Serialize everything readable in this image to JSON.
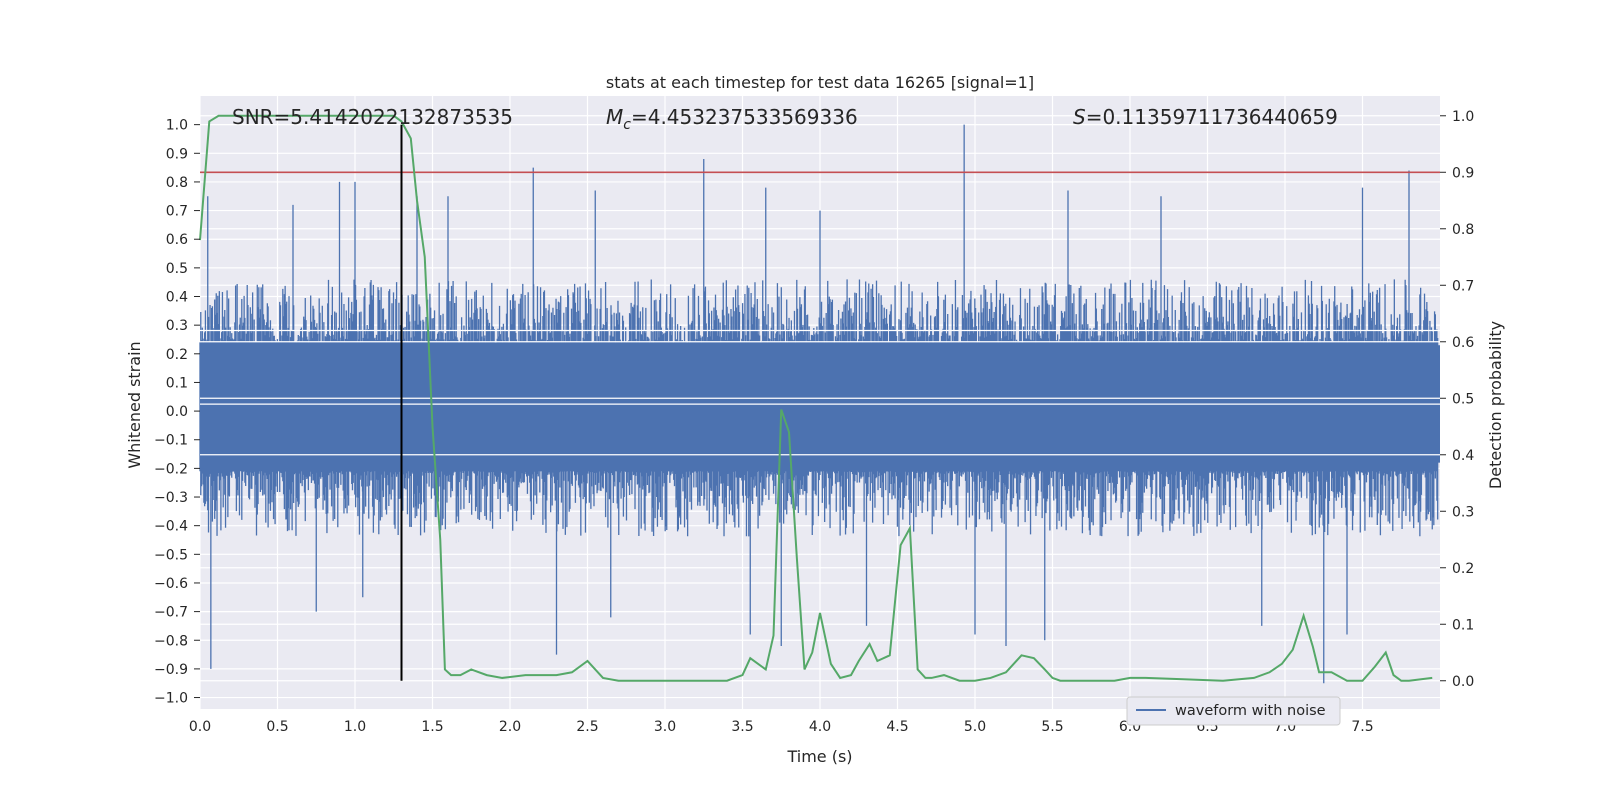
{
  "chart_data": {
    "type": "line",
    "title": "stats at each timestep for test data 16265 [signal=1]",
    "xlabel": "Time (s)",
    "ylabel": "Whitened strain",
    "ylabel_right": "Detection probability",
    "xlim": [
      0.0,
      8.0
    ],
    "ylim": [
      -1.04,
      1.1
    ],
    "ylim_right": [
      -0.05,
      1.035
    ],
    "x_ticks": [
      "0.0",
      "0.5",
      "1.0",
      "1.5",
      "2.0",
      "2.5",
      "3.0",
      "3.5",
      "4.0",
      "4.5",
      "5.0",
      "5.5",
      "6.0",
      "6.5",
      "7.0",
      "7.5"
    ],
    "y_ticks": [
      "1.0",
      "0.9",
      "0.8",
      "0.7",
      "0.6",
      "0.5",
      "0.4",
      "0.3",
      "0.2",
      "0.1",
      "0.0",
      "-0.1",
      "-0.2",
      "-0.3",
      "-0.4",
      "-0.5",
      "-0.6",
      "-0.7",
      "-0.8",
      "-0.9",
      "-1.0"
    ],
    "y_right_ticks": [
      "1.0",
      "0.9",
      "0.8",
      "0.7",
      "0.6",
      "0.5",
      "0.4",
      "0.3",
      "0.2",
      "0.1",
      "0.0"
    ],
    "grid": true,
    "legend": {
      "entries": [
        "waveform with noise"
      ],
      "location": "lower-right"
    },
    "annotations": {
      "snr": "SNR=5.4142022132873535",
      "mc_symbol": "M",
      "mc_sub": "c",
      "mc_value": "=4.453237533569336",
      "s_symbol": "S",
      "s_value": "=0.11359711736440659"
    },
    "threshold": {
      "value": 0.9,
      "axis": "right",
      "color": "#c44e52"
    },
    "marker_time": 1.3,
    "waveform": {
      "name": "waveform with noise",
      "color": "#4c72b0",
      "t_start": 0.0,
      "t_end": 7.99,
      "n": 1600,
      "typical_max": 0.4,
      "typical_min": -0.35,
      "peaks": [
        [
          0.05,
          0.75
        ],
        [
          0.07,
          -0.9
        ],
        [
          0.6,
          0.72
        ],
        [
          0.75,
          -0.7
        ],
        [
          0.9,
          0.8
        ],
        [
          1.0,
          0.8
        ],
        [
          1.05,
          -0.65
        ],
        [
          1.4,
          0.75
        ],
        [
          1.6,
          0.75
        ],
        [
          2.15,
          0.85
        ],
        [
          2.3,
          -0.85
        ],
        [
          2.55,
          0.77
        ],
        [
          2.65,
          -0.72
        ],
        [
          3.25,
          0.88
        ],
        [
          3.55,
          -0.78
        ],
        [
          3.65,
          0.78
        ],
        [
          3.75,
          -0.82
        ],
        [
          4.0,
          0.7
        ],
        [
          4.3,
          -0.75
        ],
        [
          4.93,
          1.0
        ],
        [
          5.0,
          -0.78
        ],
        [
          5.2,
          -0.82
        ],
        [
          5.45,
          -0.8
        ],
        [
          5.6,
          0.77
        ],
        [
          6.2,
          0.75
        ],
        [
          6.85,
          -0.75
        ],
        [
          7.25,
          -0.95
        ],
        [
          7.4,
          -0.78
        ],
        [
          7.5,
          0.78
        ],
        [
          7.8,
          0.84
        ]
      ]
    },
    "series": [
      {
        "name": "",
        "axis": "right",
        "color": "#55a868",
        "x": [
          0.0,
          0.06,
          0.12,
          0.2,
          0.4,
          0.6,
          0.8,
          1.0,
          1.1,
          1.2,
          1.25,
          1.3,
          1.36,
          1.4,
          1.45,
          1.5,
          1.55,
          1.58,
          1.62,
          1.68,
          1.75,
          1.85,
          1.95,
          2.1,
          2.3,
          2.4,
          2.5,
          2.6,
          2.7,
          2.8,
          3.0,
          3.2,
          3.4,
          3.5,
          3.55,
          3.6,
          3.65,
          3.7,
          3.75,
          3.8,
          3.85,
          3.9,
          3.95,
          4.0,
          4.07,
          4.13,
          4.2,
          4.25,
          4.32,
          4.37,
          4.45,
          4.52,
          4.58,
          4.63,
          4.68,
          4.72,
          4.8,
          4.9,
          5.0,
          5.1,
          5.2,
          5.3,
          5.38,
          5.45,
          5.5,
          5.55,
          5.6,
          5.7,
          5.9,
          6.0,
          6.1,
          6.3,
          6.6,
          6.8,
          6.9,
          6.98,
          7.05,
          7.12,
          7.18,
          7.22,
          7.3,
          7.4,
          7.5,
          7.58,
          7.65,
          7.7,
          7.75,
          7.8,
          7.95
        ],
        "values": [
          0.78,
          0.99,
          1.0,
          1.0,
          1.0,
          1.0,
          1.0,
          1.0,
          1.0,
          1.0,
          1.0,
          0.99,
          0.96,
          0.85,
          0.75,
          0.45,
          0.25,
          0.02,
          0.01,
          0.01,
          0.02,
          0.01,
          0.005,
          0.01,
          0.01,
          0.015,
          0.035,
          0.005,
          0.0,
          0.0,
          0.0,
          0.0,
          0.0,
          0.01,
          0.04,
          0.03,
          0.02,
          0.08,
          0.48,
          0.44,
          0.22,
          0.02,
          0.05,
          0.12,
          0.03,
          0.005,
          0.01,
          0.035,
          0.065,
          0.035,
          0.045,
          0.24,
          0.27,
          0.02,
          0.005,
          0.005,
          0.01,
          0.0,
          0.0,
          0.005,
          0.015,
          0.045,
          0.04,
          0.02,
          0.005,
          0.0,
          0.0,
          0.0,
          0.0,
          0.005,
          0.005,
          0.003,
          0.0,
          0.005,
          0.015,
          0.03,
          0.055,
          0.115,
          0.06,
          0.015,
          0.015,
          0.0,
          0.0,
          0.025,
          0.05,
          0.01,
          0.0,
          0.0,
          0.005
        ]
      }
    ]
  }
}
